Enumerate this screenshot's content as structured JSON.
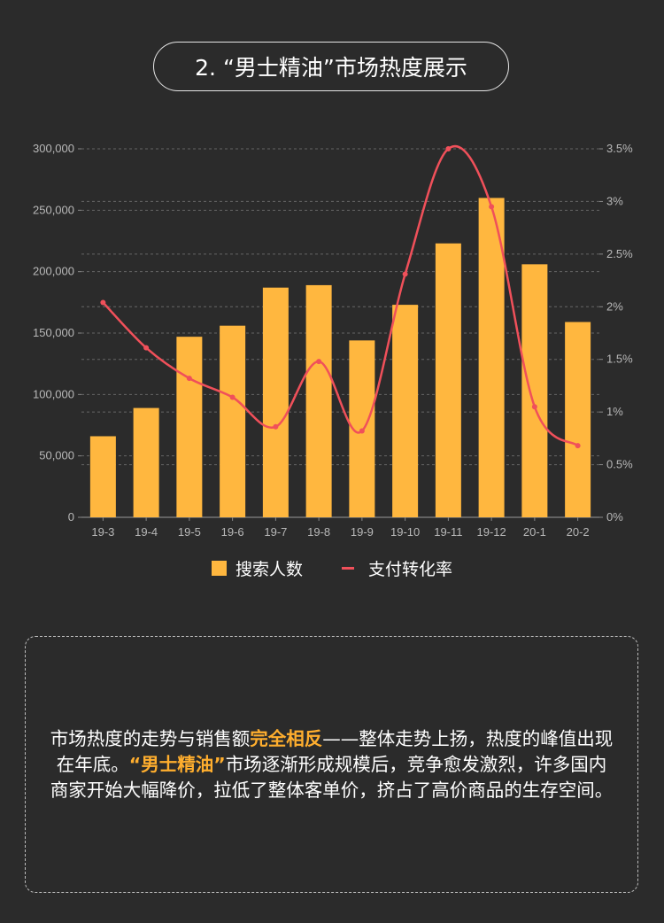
{
  "title": "2. “男士精油”市场热度展示",
  "chart_data": {
    "type": "bar+line",
    "categories": [
      "19-3",
      "19-4",
      "19-5",
      "19-6",
      "19-7",
      "19-8",
      "19-9",
      "19-10",
      "19-11",
      "19-12",
      "20-1",
      "20-2"
    ],
    "series": [
      {
        "name": "搜索人数",
        "type": "bar",
        "axis": "left",
        "color": "#ffb73f",
        "values": [
          66000,
          89000,
          147000,
          156000,
          187000,
          189000,
          144000,
          173000,
          223000,
          260000,
          206000,
          159000
        ]
      },
      {
        "name": "支付转化率",
        "type": "line",
        "axis": "right",
        "color": "#f0505a",
        "values": [
          2.04,
          1.61,
          1.32,
          1.14,
          0.86,
          1.48,
          0.82,
          2.31,
          3.5,
          2.95,
          1.05,
          0.68
        ]
      }
    ],
    "left_axis": {
      "ylim": [
        0,
        300000
      ],
      "ticks": [
        "0",
        "50,000",
        "100,000",
        "150,000",
        "200,000",
        "250,000",
        "300,000"
      ]
    },
    "right_axis": {
      "ylim": [
        0,
        3.5
      ],
      "ticks": [
        "0%",
        "0.5%",
        "1%",
        "1.5%",
        "2%",
        "2.5%",
        "3%",
        "3.5%"
      ]
    },
    "grid": true,
    "legend_position": "bottom"
  },
  "legend": {
    "bar": "搜索人数",
    "line": "支付转化率"
  },
  "description": {
    "p1": "市场热度的走势与销售额",
    "h1": "完全相反",
    "p2": "——整体走势上扬，热度的峰值出现在年底。",
    "h2": "“男士精油”",
    "p3": "市场逐渐形成规模后，竞争愈发激烈，许多国内商家开始大幅降价，拉低了整体客单价，挤占了高价商品的生存空间。"
  }
}
